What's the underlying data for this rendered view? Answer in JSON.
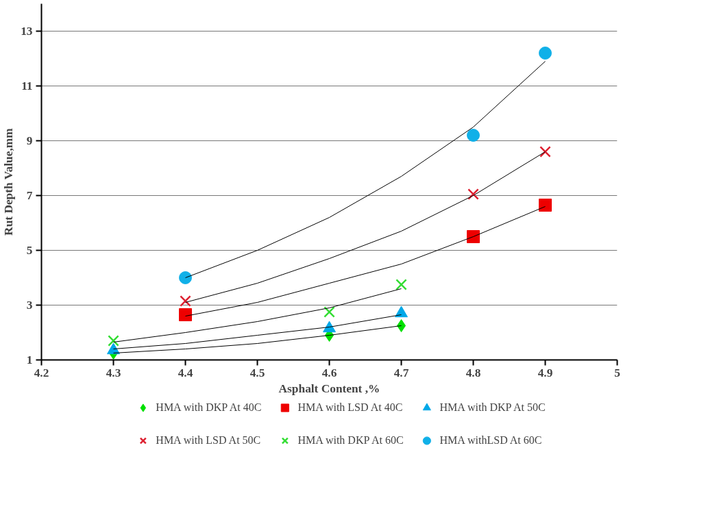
{
  "chart_data": {
    "type": "scatter",
    "xlabel": "Asphalt Content ,%",
    "ylabel": "Rut Depth Value,mm",
    "xlim": [
      4.2,
      5
    ],
    "xticks": [
      4.2,
      4.3,
      4.4,
      4.5,
      4.6,
      4.7,
      4.8,
      4.9,
      5
    ],
    "ylim": [
      1,
      14
    ],
    "yticks": [
      1,
      3,
      5,
      7,
      9,
      11,
      13
    ],
    "grid": "y",
    "legend": "bottom",
    "series": [
      {
        "name": "HMA with DKP At 40C",
        "color": "#00e000",
        "marker": "diamond",
        "x": [
          4.3,
          4.6,
          4.7
        ],
        "values": [
          1.25,
          1.9,
          2.25
        ]
      },
      {
        "name": "HMA with LSD At 40C",
        "color": "#ee0000",
        "marker": "square",
        "x": [
          4.4,
          4.8,
          4.9
        ],
        "values": [
          2.65,
          5.5,
          6.65
        ]
      },
      {
        "name": "HMA with DKP At 50C",
        "color": "#00a8e8",
        "marker": "triangle",
        "x": [
          4.3,
          4.6,
          4.7
        ],
        "values": [
          1.35,
          2.15,
          2.7
        ]
      },
      {
        "name": "HMA with LSD At 50C",
        "color": "#dd2030",
        "marker": "cross",
        "x": [
          4.4,
          4.8,
          4.9
        ],
        "values": [
          3.15,
          7.05,
          8.6
        ]
      },
      {
        "name": "HMA with DKP At 60C",
        "color": "#33dd33",
        "marker": "cross",
        "x": [
          4.3,
          4.6,
          4.7
        ],
        "values": [
          1.7,
          2.75,
          3.75
        ]
      },
      {
        "name": "HMA withLSD At 60C",
        "color": "#10b0e8",
        "marker": "circle",
        "x": [
          4.4,
          4.8,
          4.9
        ],
        "values": [
          4.0,
          9.2,
          12.2
        ]
      },
      {
        "type": "line",
        "color": "#000000",
        "x": [
          4.3,
          4.4,
          4.5,
          4.6,
          4.7
        ],
        "values": [
          1.25,
          1.4,
          1.6,
          1.9,
          2.25
        ]
      },
      {
        "type": "line",
        "color": "#000000",
        "x": [
          4.4,
          4.5,
          4.6,
          4.7,
          4.8,
          4.9
        ],
        "values": [
          2.6,
          3.1,
          3.8,
          4.5,
          5.5,
          6.6
        ]
      },
      {
        "type": "line",
        "color": "#000000",
        "x": [
          4.3,
          4.4,
          4.5,
          4.6,
          4.7
        ],
        "values": [
          1.4,
          1.6,
          1.9,
          2.2,
          2.65
        ]
      },
      {
        "type": "line",
        "color": "#000000",
        "x": [
          4.4,
          4.5,
          4.6,
          4.7,
          4.8,
          4.9
        ],
        "values": [
          3.1,
          3.8,
          4.7,
          5.7,
          7.0,
          8.6
        ]
      },
      {
        "type": "line",
        "color": "#000000",
        "x": [
          4.3,
          4.4,
          4.5,
          4.6,
          4.7
        ],
        "values": [
          1.65,
          2.0,
          2.4,
          2.9,
          3.6
        ]
      },
      {
        "type": "line",
        "color": "#000000",
        "x": [
          4.4,
          4.5,
          4.6,
          4.7,
          4.8,
          4.9
        ],
        "values": [
          4.0,
          5.0,
          6.2,
          7.7,
          9.5,
          11.9
        ]
      }
    ]
  }
}
